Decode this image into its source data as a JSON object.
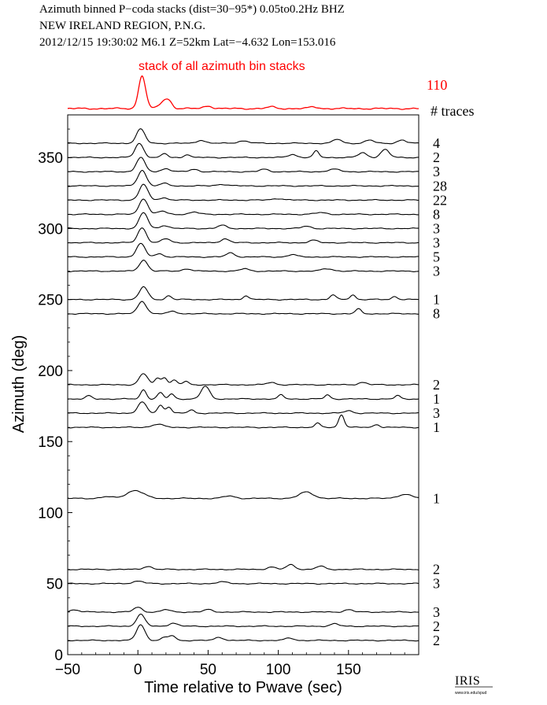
{
  "header": {
    "line1": "Azimuth binned P−coda stacks (dist=30−95*)  0.05to0.2Hz  BHZ",
    "line2": "NEW IRELAND REGION, P.N.G.",
    "line3": "2012/12/15  19:30:02  M6.1  Z=52km Lat=−4.632 Lon=153.016"
  },
  "logo": {
    "text": "IRIS",
    "subtext": "www.iris.edu/spud"
  },
  "chart_data": {
    "type": "line",
    "title": "",
    "xlabel": "Time relative to Pwave (sec)",
    "ylabel": "Azimuth (deg)",
    "xlim": [
      -50,
      200
    ],
    "ylim": [
      0,
      380
    ],
    "x_ticks": [
      -50,
      0,
      50,
      100,
      150
    ],
    "y_ticks": [
      0,
      50,
      100,
      150,
      200,
      250,
      300,
      350
    ],
    "grid": false,
    "colors": {
      "stack": "#ff0000",
      "traces": "#000000",
      "axes": "#000000"
    },
    "summary_stack": {
      "label": "stack of all azimuth bin stacks",
      "count": "110",
      "count_header": "# traces",
      "peaks": [
        {
          "t": 3,
          "amp": 1.0,
          "w": 2.5
        },
        {
          "t": 18,
          "amp": 0.18,
          "w": 3
        },
        {
          "t": 22,
          "amp": 0.2,
          "w": 2.5
        },
        {
          "t": 50,
          "amp": 0.08,
          "w": 3
        },
        {
          "t": 95,
          "amp": 0.05,
          "w": 3
        },
        {
          "t": 125,
          "amp": 0.05,
          "w": 3
        }
      ]
    },
    "series": [
      {
        "azimuth": 360,
        "count": "4",
        "peaks": [
          {
            "t": 2,
            "amp": 18,
            "w": 3
          },
          {
            "t": 45,
            "amp": 4,
            "w": 3
          },
          {
            "t": 75,
            "amp": 3,
            "w": 4
          },
          {
            "t": 142,
            "amp": 5,
            "w": 3
          },
          {
            "t": 165,
            "amp": 4,
            "w": 3
          },
          {
            "t": 188,
            "amp": 4,
            "w": 3
          }
        ]
      },
      {
        "azimuth": 350,
        "count": "2",
        "peaks": [
          {
            "t": 1,
            "amp": 18,
            "w": 3
          },
          {
            "t": 19,
            "amp": 5,
            "w": 2
          },
          {
            "t": 35,
            "amp": 4,
            "w": 2
          },
          {
            "t": 110,
            "amp": 4,
            "w": 3
          },
          {
            "t": 127,
            "amp": 8,
            "w": 2
          },
          {
            "t": 160,
            "amp": 6,
            "w": 3
          },
          {
            "t": 176,
            "amp": 10,
            "w": 3
          }
        ]
      },
      {
        "azimuth": 340,
        "count": "3",
        "peaks": [
          {
            "t": 2,
            "amp": 18,
            "w": 3
          },
          {
            "t": 20,
            "amp": 4,
            "w": 3
          },
          {
            "t": 40,
            "amp": 3,
            "w": 3
          },
          {
            "t": 90,
            "amp": 3,
            "w": 3
          },
          {
            "t": 140,
            "amp": 3,
            "w": 4
          }
        ]
      },
      {
        "azimuth": 330,
        "count": "28",
        "peaks": [
          {
            "t": 3,
            "amp": 20,
            "w": 3
          },
          {
            "t": 19,
            "amp": 3,
            "w": 3
          },
          {
            "t": 60,
            "amp": 2,
            "w": 4
          }
        ]
      },
      {
        "azimuth": 320,
        "count": "22",
        "peaks": [
          {
            "t": 4,
            "amp": 20,
            "w": 3
          },
          {
            "t": 18,
            "amp": 3,
            "w": 3
          },
          {
            "t": 100,
            "amp": 2,
            "w": 4
          }
        ]
      },
      {
        "azimuth": 310,
        "count": "8",
        "peaks": [
          {
            "t": 4,
            "amp": 20,
            "w": 3
          },
          {
            "t": 17,
            "amp": 4,
            "w": 3
          },
          {
            "t": 40,
            "amp": 3,
            "w": 3
          },
          {
            "t": 130,
            "amp": 2,
            "w": 4
          }
        ]
      },
      {
        "azimuth": 300,
        "count": "3",
        "peaks": [
          {
            "t": 4,
            "amp": 20,
            "w": 3
          },
          {
            "t": 19,
            "amp": 4,
            "w": 3
          },
          {
            "t": 60,
            "amp": 4,
            "w": 3
          },
          {
            "t": 120,
            "amp": 3,
            "w": 3
          }
        ]
      },
      {
        "azimuth": 290,
        "count": "3",
        "peaks": [
          {
            "t": 3,
            "amp": 19,
            "w": 3
          },
          {
            "t": 20,
            "amp": 5,
            "w": 3
          },
          {
            "t": 62,
            "amp": 5,
            "w": 3
          },
          {
            "t": 125,
            "amp": 3,
            "w": 3
          }
        ]
      },
      {
        "azimuth": 280,
        "count": "5",
        "peaks": [
          {
            "t": 2,
            "amp": 17,
            "w": 3
          },
          {
            "t": 15,
            "amp": 4,
            "w": 3
          },
          {
            "t": 66,
            "amp": 5,
            "w": 3
          },
          {
            "t": 110,
            "amp": 3,
            "w": 3
          }
        ]
      },
      {
        "azimuth": 270,
        "count": "3",
        "peaks": [
          {
            "t": 4,
            "amp": 14,
            "w": 3
          },
          {
            "t": 35,
            "amp": 3,
            "w": 3
          },
          {
            "t": 76,
            "amp": 3,
            "w": 3
          },
          {
            "t": 135,
            "amp": 3,
            "w": 4
          }
        ]
      },
      {
        "azimuth": 250,
        "count": "1",
        "peaks": [
          {
            "t": 4,
            "amp": 16,
            "w": 3
          },
          {
            "t": 22,
            "amp": 5,
            "w": 2
          },
          {
            "t": 77,
            "amp": 5,
            "w": 2
          },
          {
            "t": 139,
            "amp": 6,
            "w": 2
          },
          {
            "t": 153,
            "amp": 6,
            "w": 2
          },
          {
            "t": 183,
            "amp": 4,
            "w": 2
          }
        ]
      },
      {
        "azimuth": 240,
        "count": "8",
        "peaks": [
          {
            "t": 3,
            "amp": 16,
            "w": 3
          },
          {
            "t": 25,
            "amp": 3,
            "w": 3
          },
          {
            "t": 157,
            "amp": 6,
            "w": 2
          }
        ]
      },
      {
        "azimuth": 190,
        "count": "2",
        "peaks": [
          {
            "t": 4,
            "amp": 14,
            "w": 3
          },
          {
            "t": 14,
            "amp": 8,
            "w": 2
          },
          {
            "t": 19,
            "amp": 9,
            "w": 2
          },
          {
            "t": 26,
            "amp": 6,
            "w": 2
          },
          {
            "t": 34,
            "amp": 4,
            "w": 2
          },
          {
            "t": 95,
            "amp": 3,
            "w": 3
          },
          {
            "t": 160,
            "amp": 3,
            "w": 3
          }
        ]
      },
      {
        "azimuth": 180,
        "count": "1",
        "peaks": [
          {
            "t": -35,
            "amp": 4,
            "w": 2
          },
          {
            "t": 4,
            "amp": 12,
            "w": 2
          },
          {
            "t": 16,
            "amp": 8,
            "w": 2
          },
          {
            "t": 24,
            "amp": 6,
            "w": 2
          },
          {
            "t": 48,
            "amp": 16,
            "w": 3
          },
          {
            "t": 102,
            "amp": 5,
            "w": 2
          },
          {
            "t": 135,
            "amp": 5,
            "w": 2
          },
          {
            "t": 185,
            "amp": 4,
            "w": 2
          }
        ]
      },
      {
        "azimuth": 170,
        "count": "3",
        "peaks": [
          {
            "t": 3,
            "amp": 14,
            "w": 3
          },
          {
            "t": 16,
            "amp": 10,
            "w": 2
          },
          {
            "t": 22,
            "amp": 8,
            "w": 2
          },
          {
            "t": 38,
            "amp": 4,
            "w": 2
          },
          {
            "t": 150,
            "amp": 3,
            "w": 3
          }
        ]
      },
      {
        "azimuth": 160,
        "count": "1",
        "peaks": [
          {
            "t": 14,
            "amp": 4,
            "w": 4
          },
          {
            "t": 128,
            "amp": 5,
            "w": 2
          },
          {
            "t": 145,
            "amp": 16,
            "w": 2
          },
          {
            "t": 170,
            "amp": 4,
            "w": 2
          }
        ]
      },
      {
        "azimuth": 110,
        "count": "1",
        "peaks": [
          {
            "t": -22,
            "amp": 2,
            "w": 4
          },
          {
            "t": -2,
            "amp": 10,
            "w": 6
          },
          {
            "t": 65,
            "amp": 3,
            "w": 4
          },
          {
            "t": 120,
            "amp": 8,
            "w": 5
          },
          {
            "t": 190,
            "amp": 5,
            "w": 5
          }
        ]
      },
      {
        "azimuth": 60,
        "count": "2",
        "peaks": [
          {
            "t": 7,
            "amp": 4,
            "w": 3
          },
          {
            "t": 95,
            "amp": 3,
            "w": 3
          },
          {
            "t": 109,
            "amp": 6,
            "w": 3
          },
          {
            "t": 130,
            "amp": 4,
            "w": 3
          }
        ]
      },
      {
        "azimuth": 50,
        "count": "3",
        "peaks": [
          {
            "t": 0,
            "amp": 3,
            "w": 4
          },
          {
            "t": 60,
            "amp": 2,
            "w": 4
          }
        ]
      },
      {
        "azimuth": 30,
        "count": "3",
        "peaks": [
          {
            "t": -45,
            "amp": 3,
            "w": 3
          },
          {
            "t": 0,
            "amp": 6,
            "w": 3
          },
          {
            "t": 20,
            "amp": 3,
            "w": 3
          },
          {
            "t": 50,
            "amp": 3,
            "w": 3
          },
          {
            "t": 150,
            "amp": 3,
            "w": 3
          }
        ]
      },
      {
        "azimuth": 20,
        "count": "2",
        "peaks": [
          {
            "t": 2,
            "amp": 15,
            "w": 3
          },
          {
            "t": 25,
            "amp": 4,
            "w": 3
          },
          {
            "t": 140,
            "amp": 3,
            "w": 3
          }
        ]
      },
      {
        "azimuth": 10,
        "count": "2",
        "peaks": [
          {
            "t": 2,
            "amp": 20,
            "w": 3
          },
          {
            "t": 20,
            "amp": 4,
            "w": 3
          },
          {
            "t": 25,
            "amp": 5,
            "w": 2
          },
          {
            "t": 58,
            "amp": 4,
            "w": 3
          },
          {
            "t": 108,
            "amp": 3,
            "w": 3
          }
        ]
      }
    ]
  }
}
